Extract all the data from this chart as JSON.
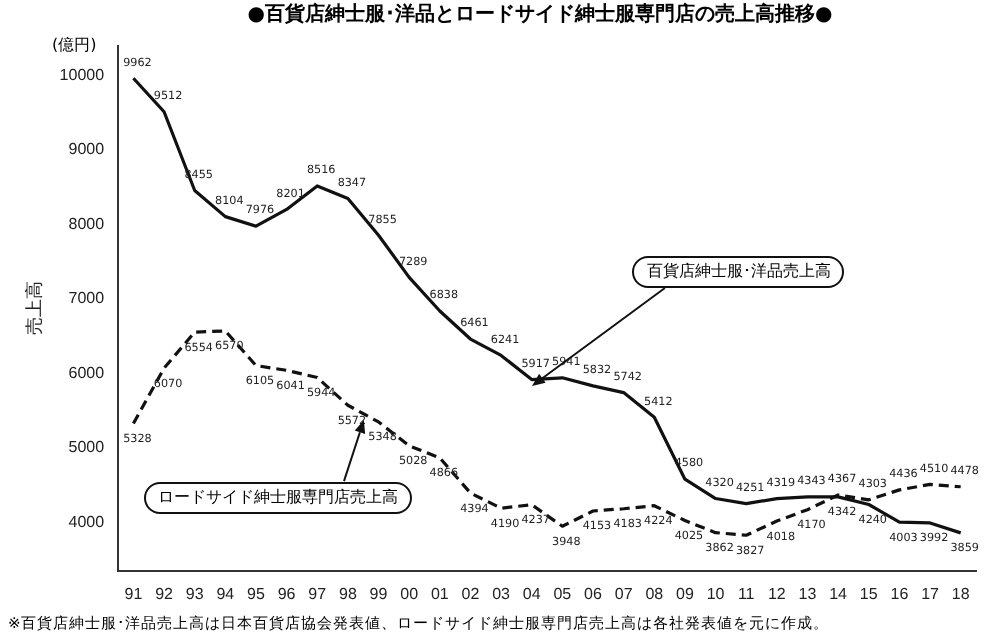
{
  "chart_data": {
    "type": "line",
    "title": "●百貨店紳士服･洋品とロードサイド紳士服専門店の売上高推移●",
    "ylabel": "売上高",
    "categories": [
      "91",
      "92",
      "93",
      "94",
      "95",
      "96",
      "97",
      "98",
      "99",
      "00",
      "01",
      "02",
      "03",
      "04",
      "05",
      "06",
      "07",
      "08",
      "09",
      "10",
      "11",
      "12",
      "13",
      "14",
      "15",
      "16",
      "17",
      "18"
    ],
    "series": [
      {
        "name": "百貨店紳士服･洋品売上高",
        "color": "#111111",
        "line_style": "solid",
        "values": [
          9962,
          9512,
          8455,
          8104,
          7976,
          8201,
          8516,
          8347,
          7855,
          7289,
          6838,
          6461,
          6241,
          5917,
          5941,
          5832,
          5742,
          5412,
          4580,
          4320,
          4251,
          4319,
          4343,
          4342,
          4240,
          4003,
          3992,
          3859
        ]
      },
      {
        "name": "ロードサイド紳士服専門店売上高",
        "color": "#111111",
        "line_style": "dashed",
        "values": [
          5328,
          6070,
          6554,
          6570,
          6105,
          6041,
          5944,
          5572,
          5348,
          5028,
          4866,
          4394,
          4190,
          4237,
          3948,
          4153,
          4183,
          4224,
          4025,
          3862,
          3827,
          4018,
          4170,
          4367,
          4303,
          4436,
          4510,
          4478
        ]
      }
    ],
    "ylim": [
      3350,
      10400
    ],
    "yticks": [
      4000,
      5000,
      6000,
      7000,
      8000,
      9000,
      10000
    ],
    "grid": false,
    "legend": false,
    "marker": "none",
    "data_labels": true,
    "annotations": [
      "(億円)",
      "※百貨店紳士服･洋品売上高は日本百貨店協会発表値、ロードサイド紳士服専門店売上高は各社発表値を元に作成。"
    ]
  }
}
